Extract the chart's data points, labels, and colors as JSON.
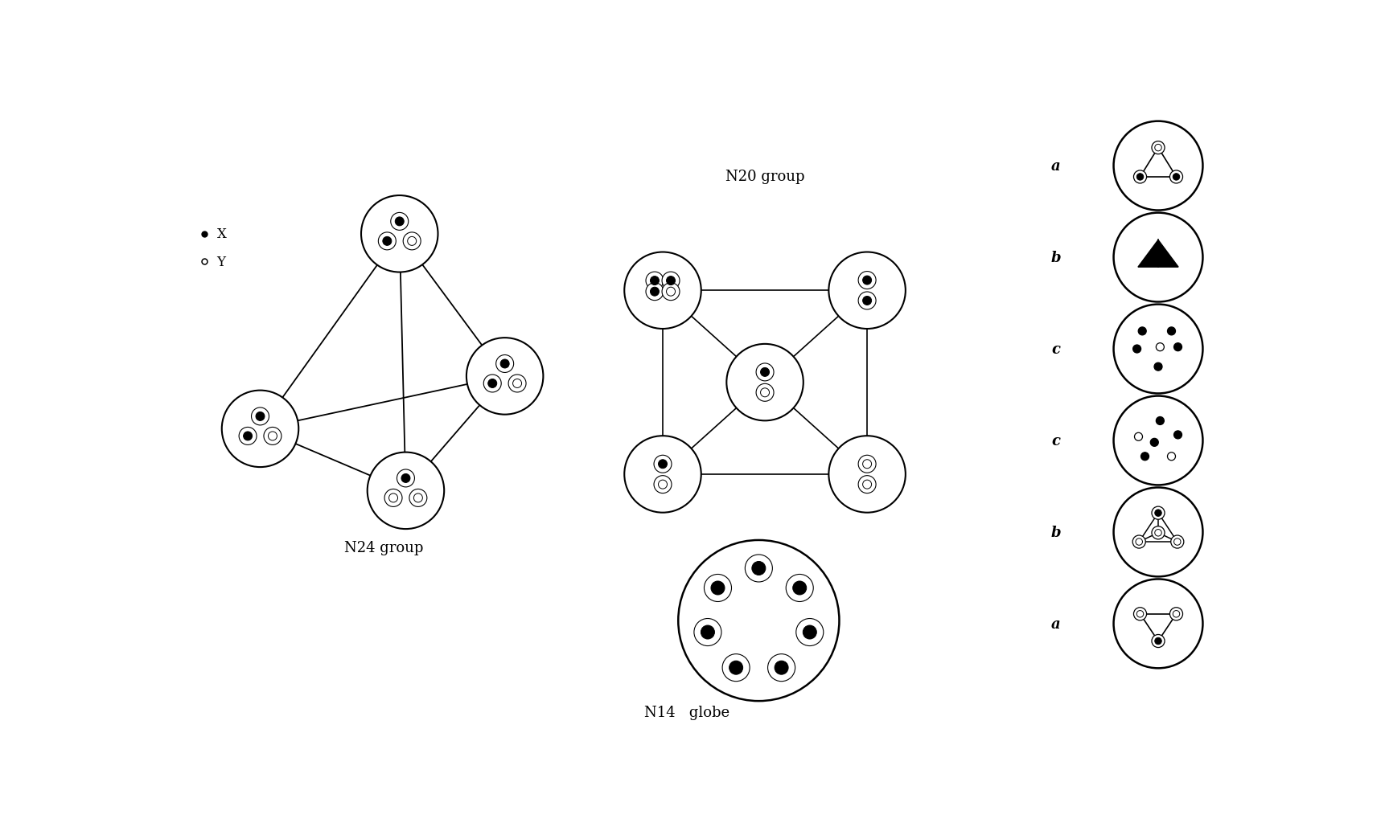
{
  "background_color": "#ffffff",
  "n24_label": "N24 group",
  "n20_label": "N20 group",
  "n14_label": "N14   globe",
  "right_labels": [
    "a",
    "b",
    "c",
    "c",
    "b",
    "a"
  ],
  "legend_x_label": "X",
  "legend_y_label": "Y"
}
